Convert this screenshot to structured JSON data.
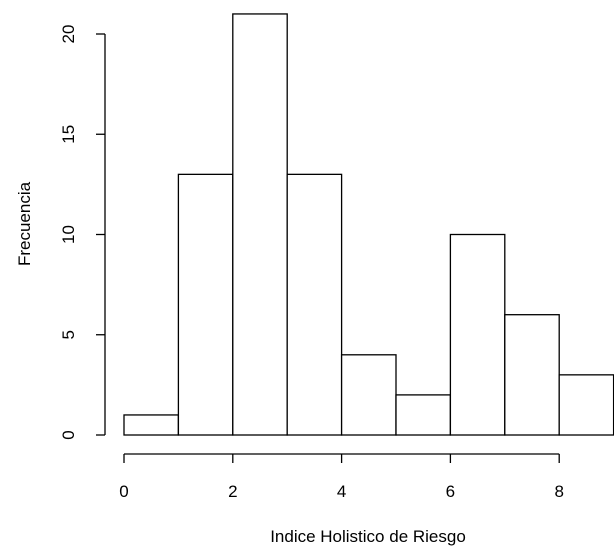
{
  "chart_data": {
    "type": "bar",
    "title": "",
    "xlabel": "Indice Holistico de Riesgo",
    "ylabel": "Frecuencia",
    "bins": [
      [
        0,
        1
      ],
      [
        1,
        2
      ],
      [
        2,
        3
      ],
      [
        3,
        4
      ],
      [
        4,
        5
      ],
      [
        5,
        6
      ],
      [
        6,
        7
      ],
      [
        7,
        8
      ],
      [
        8,
        9
      ]
    ],
    "values": [
      1,
      13,
      21,
      13,
      4,
      2,
      10,
      6,
      3
    ],
    "xlim": [
      0,
      9
    ],
    "ylim": [
      0,
      21
    ],
    "x_ticks": [
      "0",
      "2",
      "4",
      "6",
      "8"
    ],
    "y_ticks": [
      "0",
      "5",
      "10",
      "15",
      "20"
    ],
    "bar_fill": "#ffffff",
    "bar_stroke": "#000000",
    "grid": false,
    "legend": "none"
  }
}
